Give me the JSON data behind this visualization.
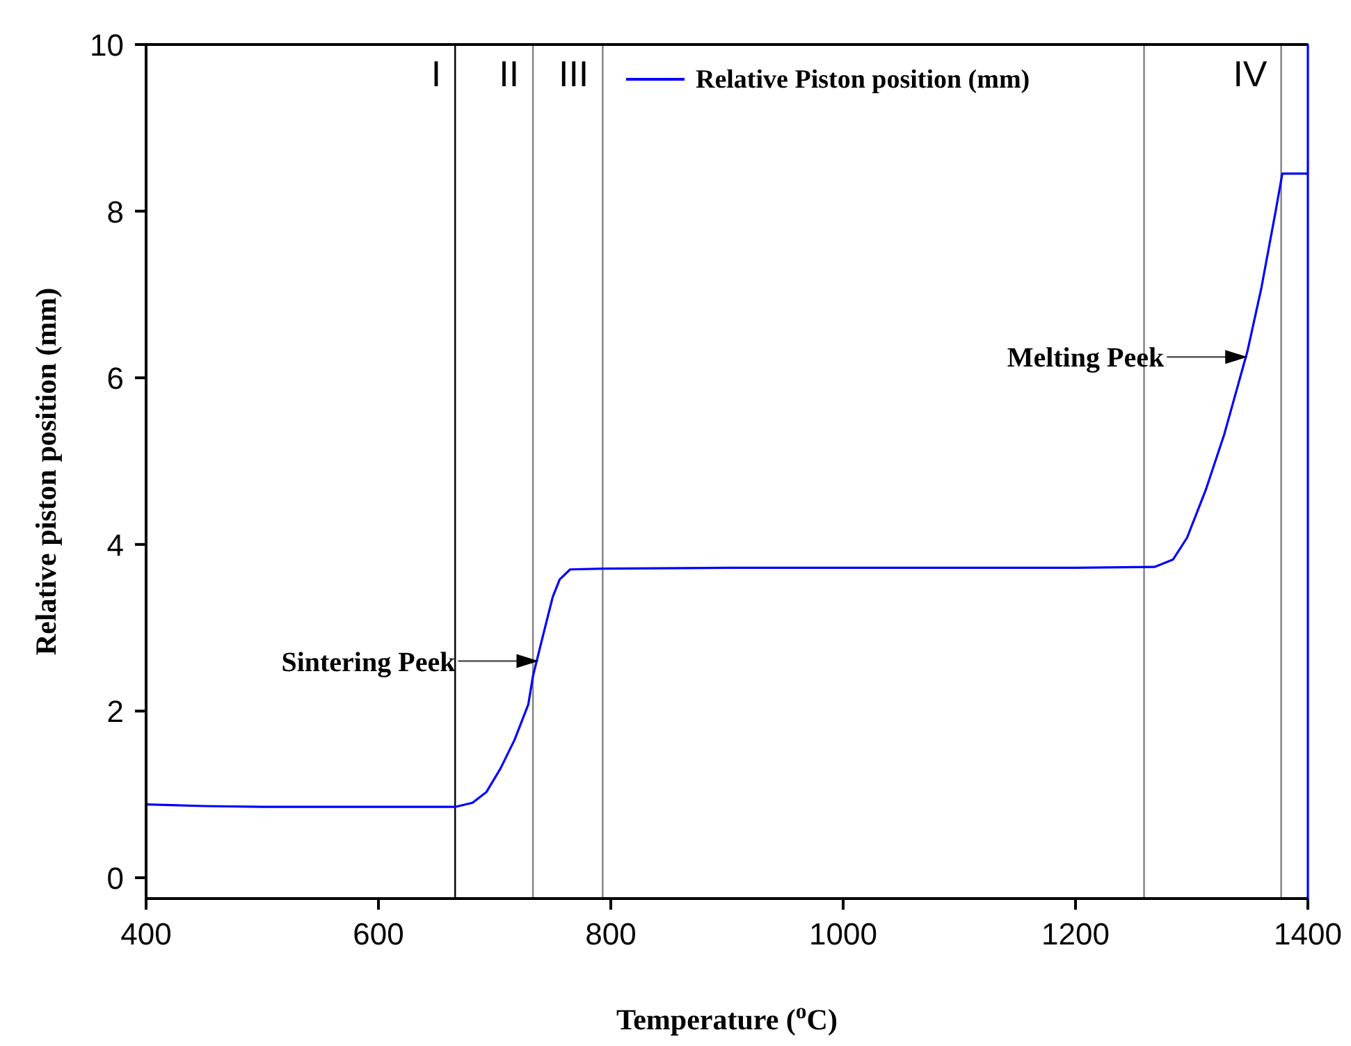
{
  "chart_data": {
    "type": "line",
    "xlabel": "Temperature ($^{o}$C)",
    "ylabel": "Relative piston position (mm)",
    "xlim": [
      400,
      1400
    ],
    "xticks": [
      400,
      600,
      800,
      1000,
      1200,
      1400
    ],
    "ylim": [
      -0.25,
      10
    ],
    "yticks": [
      0,
      2,
      4,
      6,
      8,
      10
    ],
    "grid": false,
    "legend": "top right",
    "marker": "none",
    "line_style": "solid",
    "series": [
      {
        "name": "Relative Piston position (mm)",
        "color": "#0000ff",
        "x": [
          400,
          450,
          500,
          600,
          666,
          681,
          693,
          705,
          717,
          729,
          733,
          741,
          750,
          756,
          765,
          793,
          900,
          1000,
          1100,
          1200,
          1268,
          1284,
          1296,
          1312,
          1328,
          1348,
          1360,
          1372,
          1378,
          1398,
          1400,
          1400,
          1400
        ],
        "values": [
          0.88,
          0.86,
          0.85,
          0.85,
          0.85,
          0.9,
          1.03,
          1.31,
          1.65,
          2.08,
          2.42,
          2.87,
          3.37,
          3.58,
          3.7,
          3.71,
          3.72,
          3.72,
          3.72,
          3.72,
          3.73,
          3.82,
          4.08,
          4.65,
          5.32,
          6.32,
          7.08,
          7.98,
          8.45,
          8.45,
          8.45,
          10,
          -0.25
        ]
      }
    ],
    "ref_lines": [
      {
        "axis": "x",
        "value": 666,
        "color": "#000000",
        "label": "I"
      },
      {
        "axis": "x",
        "value": 733,
        "color": "#808080",
        "label": "II"
      },
      {
        "axis": "x",
        "value": 793,
        "color": "#808080",
        "label": "III"
      },
      {
        "axis": "x",
        "value": 1259,
        "color": "#808080"
      },
      {
        "axis": "x",
        "value": 1377,
        "color": "#808080",
        "label": "IV"
      }
    ],
    "annotations": [
      {
        "text": "Sintering Peek",
        "x": 738,
        "y": 2.6
      },
      {
        "text": "Melting Peek",
        "x": 1348,
        "y": 6.25
      }
    ]
  }
}
